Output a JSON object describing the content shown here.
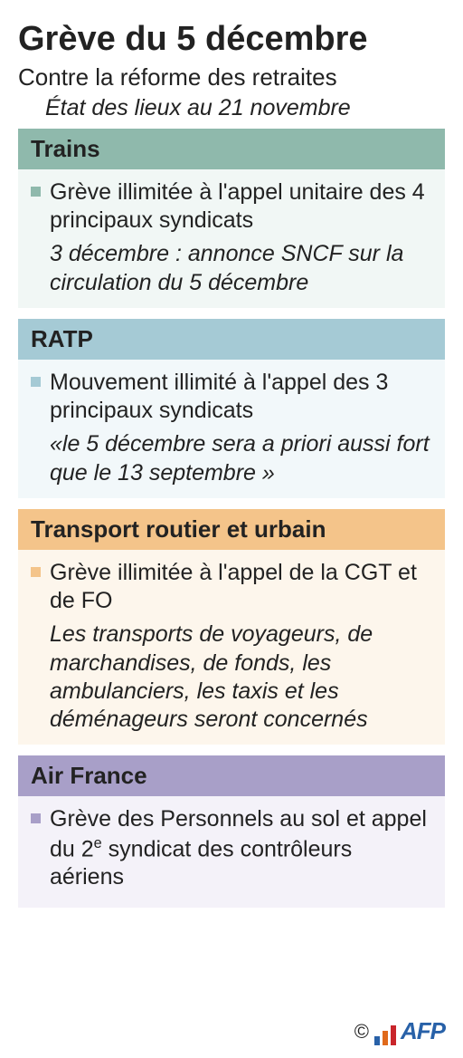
{
  "title": "Grève du 5 décembre",
  "subtitle": "Contre la réforme des retraites",
  "status_line": "État des lieux au 21 novembre",
  "colors": {
    "trains_header": "#8fb9ac",
    "trains_body": "#f1f7f5",
    "trains_bullet": "#8fb9ac",
    "ratp_header": "#a5cad5",
    "ratp_body": "#f2f8fa",
    "ratp_bullet": "#a5cad5",
    "road_header": "#f4c48a",
    "road_body": "#fdf6ec",
    "road_bullet": "#f4c48a",
    "air_header": "#a89fc8",
    "air_body": "#f4f2f9",
    "air_bullet": "#a89fc8",
    "text": "#222222",
    "afp_blue": "#2861a8",
    "afp_orange": "#e06a1b",
    "afp_red": "#c9252b"
  },
  "sections": {
    "trains": {
      "label": "Trains",
      "bullet": "Grève illimitée à l'appel unitaire des 4 principaux syndicats",
      "note": "3 décembre : annonce SNCF sur la circulation du 5 décembre"
    },
    "ratp": {
      "label": "RATP",
      "bullet": "Mouvement illimité à l'appel des 3 principaux syndicats",
      "note": "«le 5 décembre sera a priori aussi fort que le 13 septembre »"
    },
    "road": {
      "label": "Transport routier et urbain",
      "bullet": "Grève illimitée à l'appel de la CGT et de FO",
      "note": "Les transports de voyageurs, de marchandises, de fonds, les ambulanciers, les taxis et les déménageurs seront concernés"
    },
    "air": {
      "label": "Air France",
      "bullet_html": "Grève des Personnels au sol et appel du 2<sup>e</sup> syndicat des contrôleurs aériens"
    }
  },
  "copyright": "©",
  "afp": "AFP"
}
